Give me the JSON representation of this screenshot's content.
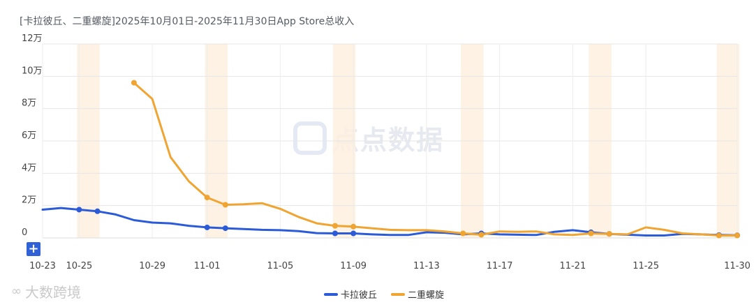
{
  "chart_data": {
    "type": "line",
    "title": "[卡拉彼丘、二重螺旋]2025年10月01日-2025年11月30日App Store总收入",
    "x": [
      "10-23",
      "10-24",
      "10-25",
      "10-26",
      "10-27",
      "10-28",
      "10-29",
      "10-30",
      "10-31",
      "11-01",
      "11-02",
      "11-03",
      "11-04",
      "11-05",
      "11-06",
      "11-07",
      "11-08",
      "11-09",
      "11-10",
      "11-11",
      "11-12",
      "11-13",
      "11-14",
      "11-15",
      "11-16",
      "11-17",
      "11-18",
      "11-19",
      "11-20",
      "11-21",
      "11-22",
      "11-23",
      "11-24",
      "11-25",
      "11-26",
      "11-27",
      "11-28",
      "11-29",
      "11-30"
    ],
    "xtick_labels": [
      "10-23",
      "10-25",
      "10-29",
      "11-01",
      "11-05",
      "11-09",
      "11-13",
      "11-17",
      "11-21",
      "11-25",
      "11-30"
    ],
    "ytick_labels": [
      "0",
      "2万",
      "4万",
      "6万",
      "8万",
      "10万",
      "12万"
    ],
    "ylim": [
      0,
      120000
    ],
    "series": [
      {
        "name": "卡拉彼丘",
        "color": "#2b5bd7",
        "values": [
          17500,
          18500,
          17500,
          16500,
          14500,
          11000,
          9500,
          9000,
          7500,
          6500,
          6000,
          5500,
          5000,
          4800,
          4200,
          3000,
          2800,
          2800,
          2200,
          1800,
          1800,
          3500,
          3200,
          2200,
          2800,
          2200,
          2000,
          1800,
          3800,
          4800,
          3500,
          2500,
          2000,
          1500,
          1500,
          2500,
          2200,
          1800,
          1600
        ]
      },
      {
        "name": "二重螺旋",
        "color": "#f0a431",
        "values": [
          null,
          null,
          null,
          null,
          null,
          96000,
          86000,
          50000,
          35000,
          25000,
          20500,
          20800,
          21500,
          18000,
          13000,
          9000,
          7500,
          7000,
          6000,
          5000,
          4800,
          4800,
          4000,
          2800,
          2000,
          4000,
          3800,
          4000,
          2200,
          1800,
          2800,
          2500,
          2200,
          6500,
          5000,
          2800,
          2200,
          1500,
          1500
        ]
      }
    ],
    "markers": {
      "卡拉彼丘": [
        "10-25",
        "10-26",
        "11-01",
        "11-02",
        "11-08",
        "11-09",
        "11-16",
        "11-22",
        "11-23",
        "11-29",
        "11-30"
      ],
      "二重螺旋": [
        "10-28",
        "11-01",
        "11-02",
        "11-08",
        "11-09",
        "11-15",
        "11-16",
        "11-22",
        "11-23",
        "11-29",
        "11-30"
      ]
    },
    "highlight_ranges": [
      [
        "10-25",
        "10-26"
      ],
      [
        "11-01",
        "11-02"
      ],
      [
        "11-08",
        "11-09"
      ],
      [
        "11-15",
        "11-16"
      ],
      [
        "11-22",
        "11-23"
      ],
      [
        "11-29",
        "11-30"
      ]
    ],
    "grid": true,
    "legend_position": "bottom-center"
  },
  "watermark": "点点数据",
  "brand": "大数跨境",
  "add_button_label": "+"
}
